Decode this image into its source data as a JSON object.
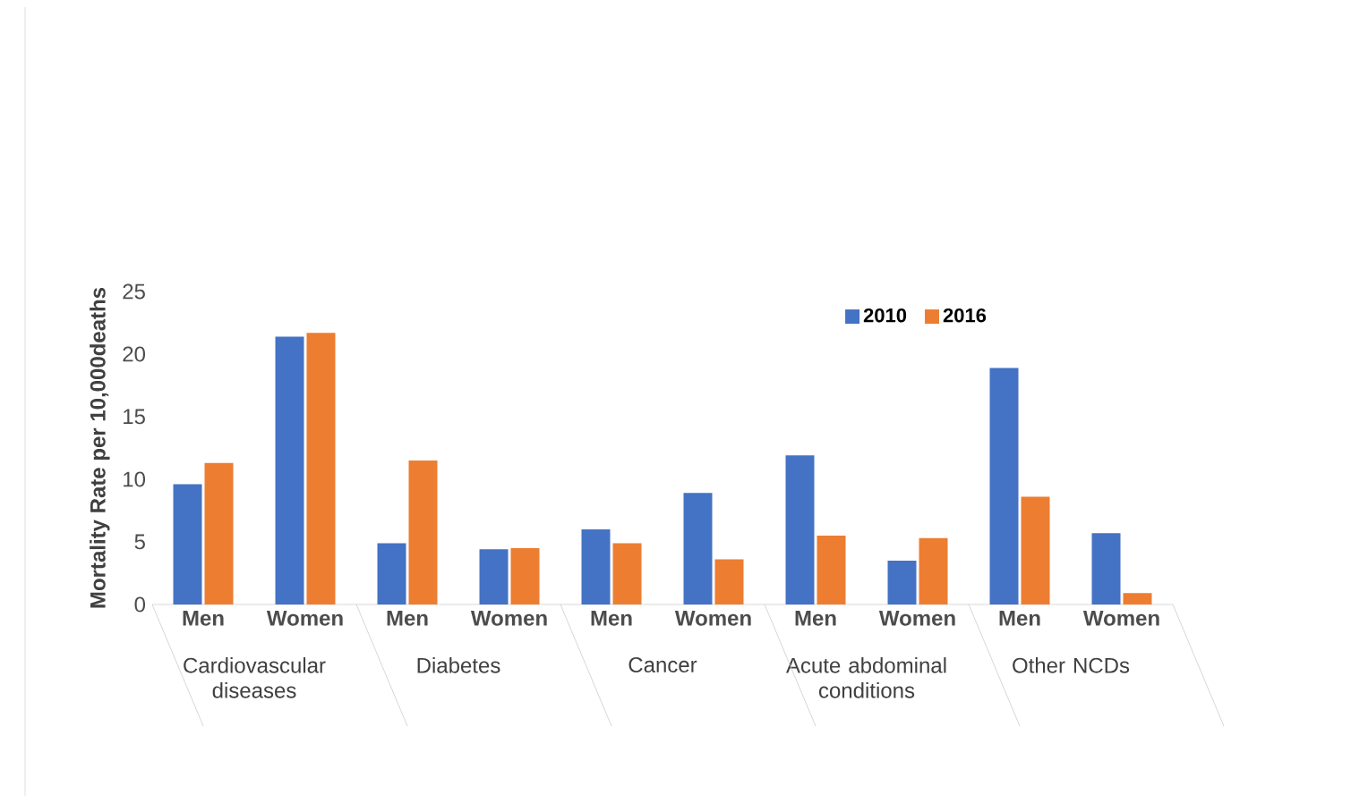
{
  "chart_data": {
    "type": "bar",
    "ylabel": "Mortality Rate per 10,000deaths",
    "categories": [
      "Men",
      "Women",
      "Men",
      "Women",
      "Men",
      "Women",
      "Men",
      "Women",
      "Men",
      "Women"
    ],
    "series": [
      {
        "name": "2010",
        "color": "#4472c4",
        "values": [
          9.6,
          21.4,
          4.9,
          4.4,
          6.0,
          8.9,
          11.9,
          3.5,
          18.9,
          5.7
        ]
      },
      {
        "name": "2016",
        "color": "#ed7d31",
        "values": [
          11.3,
          21.7,
          11.5,
          4.5,
          4.9,
          3.6,
          5.5,
          5.3,
          8.6,
          0.9
        ]
      }
    ],
    "ylim": [
      0,
      25
    ],
    "yticks": [
      0,
      5,
      10,
      15,
      20,
      25
    ],
    "legend": "top right",
    "annotations": [
      "Cardiovascular diseases",
      "Diabetes",
      "Cancer",
      "Acute abdominal conditions",
      "Other NCDs"
    ]
  }
}
